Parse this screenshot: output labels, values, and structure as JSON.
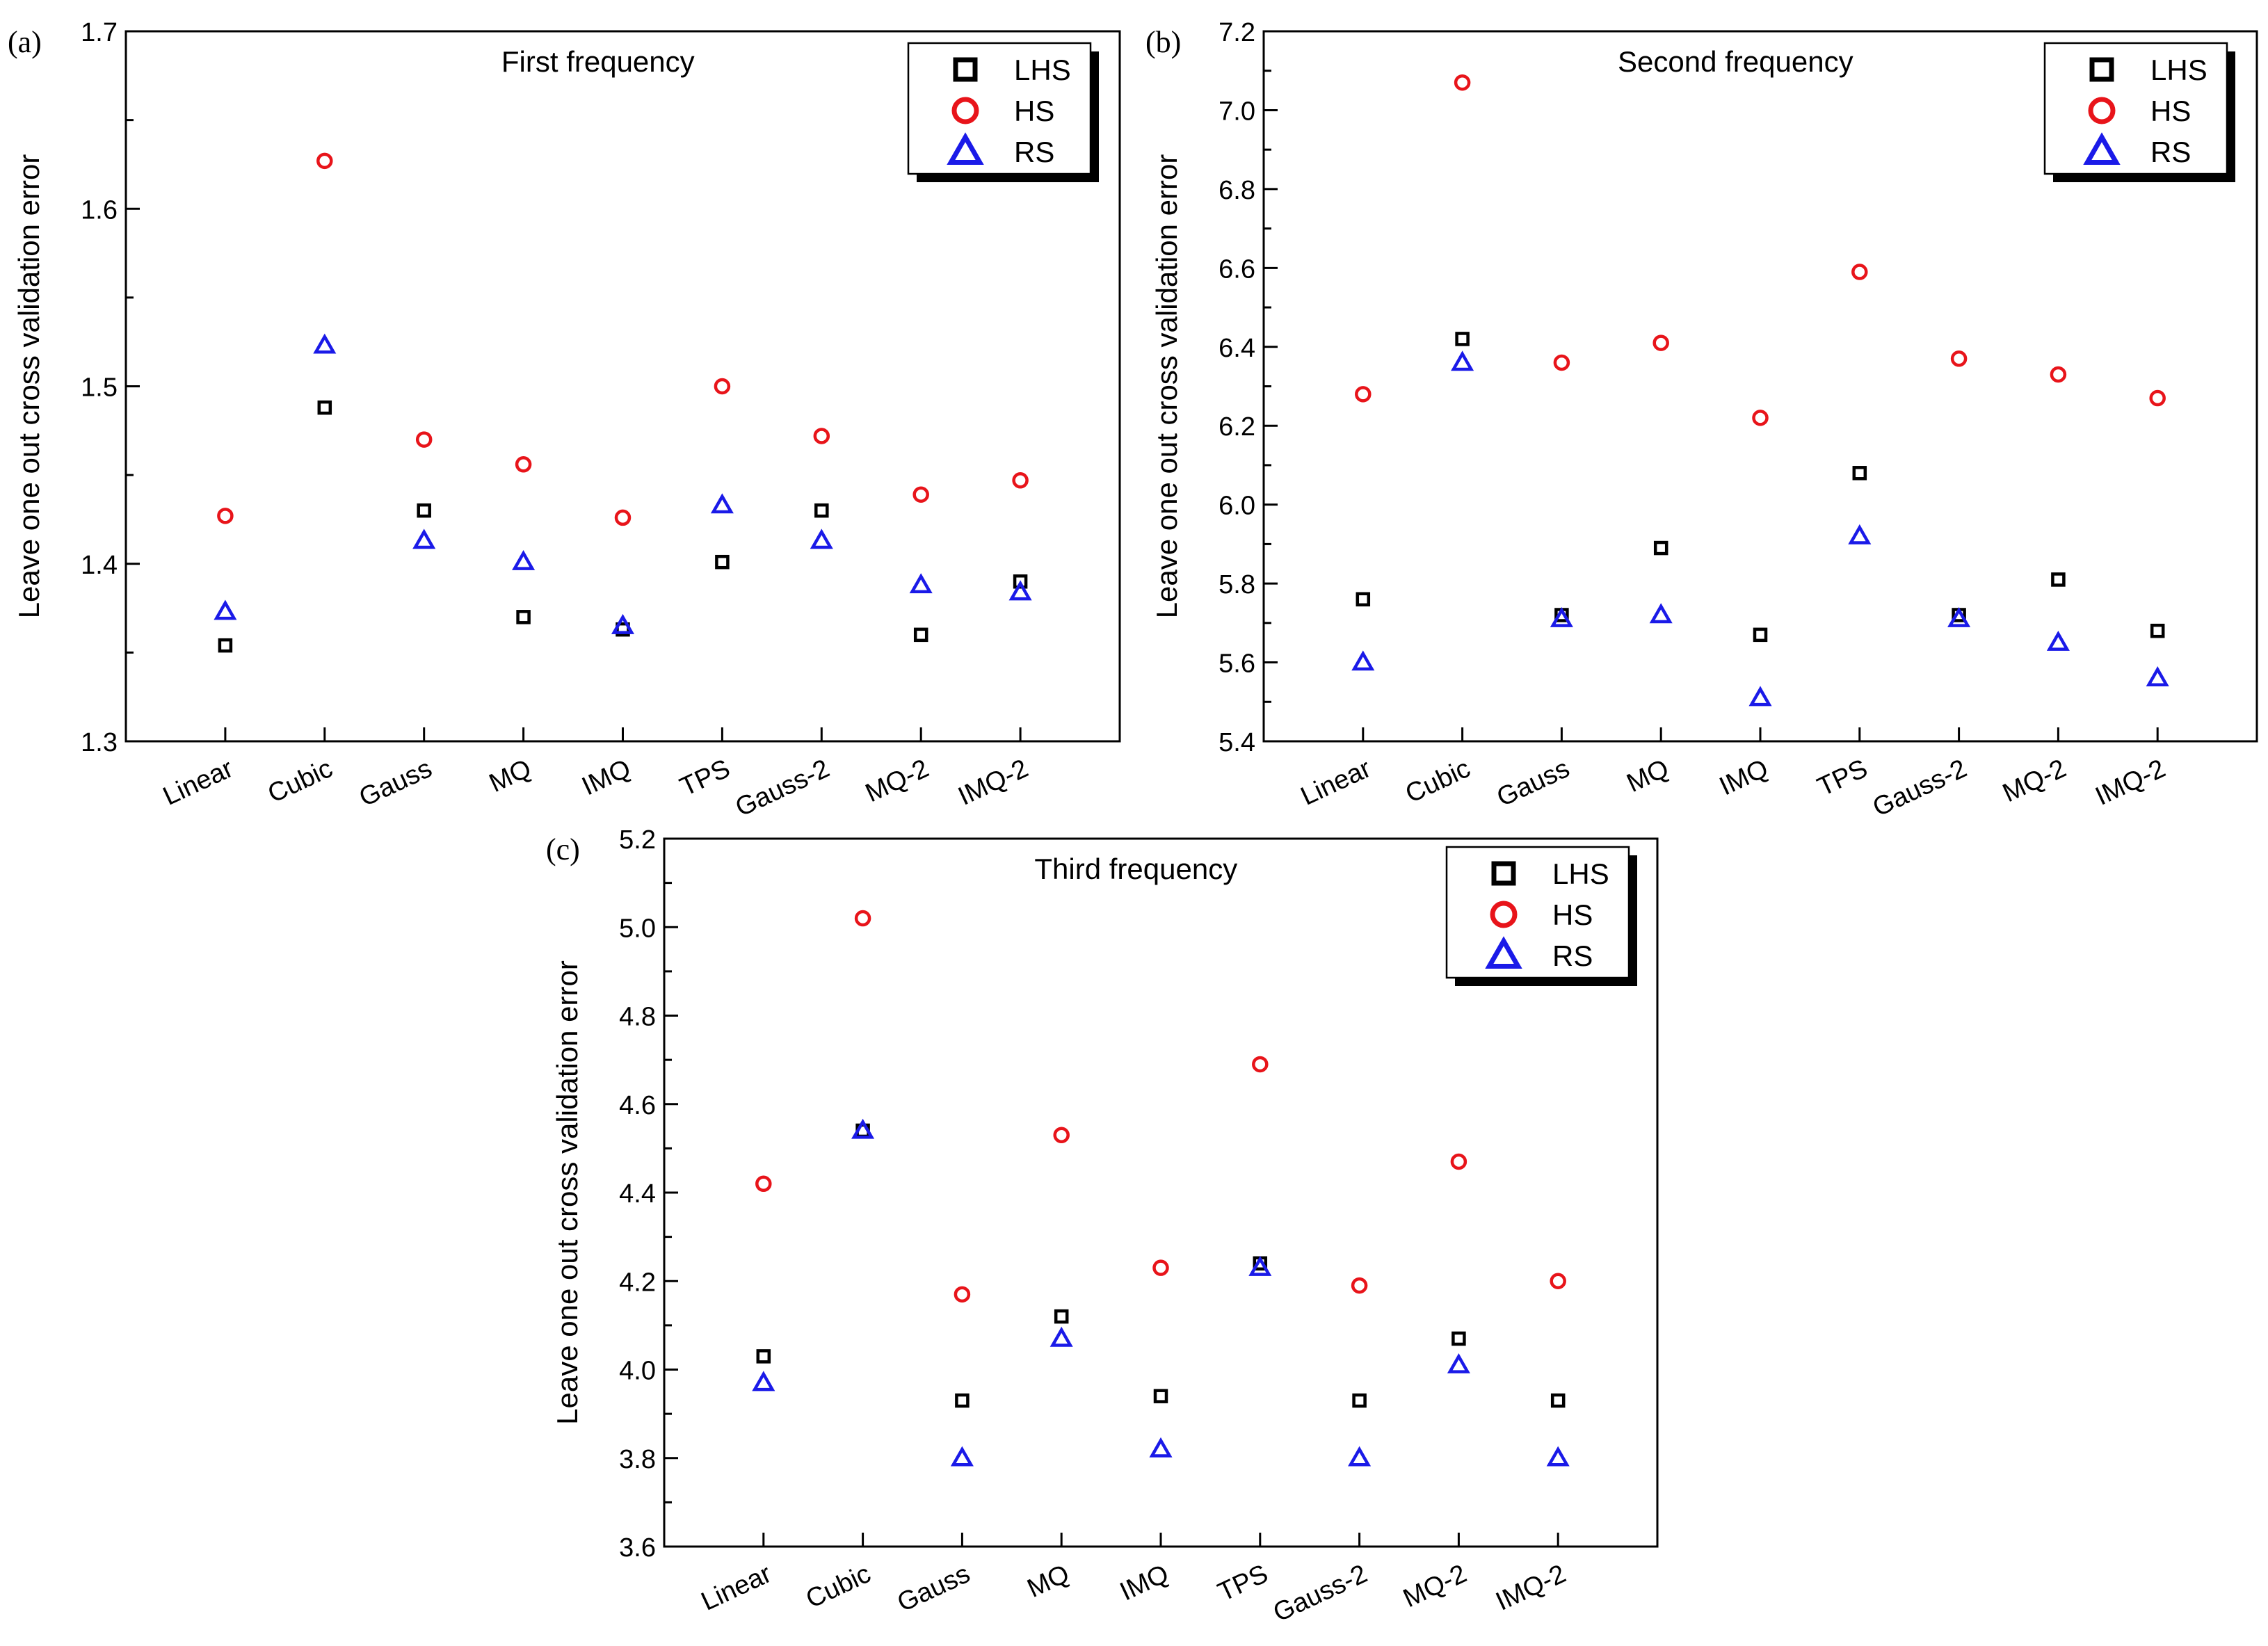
{
  "figure": {
    "series_styles": [
      {
        "name": "LHS",
        "marker": "square",
        "color": "#000000"
      },
      {
        "name": "HS",
        "marker": "circle",
        "color": "#e8141a"
      },
      {
        "name": "RS",
        "marker": "triangle",
        "color": "#1a1ae8"
      }
    ]
  },
  "chart_data": [
    {
      "panel_label": "(a)",
      "type": "scatter",
      "title": "First frequency",
      "xlabel": "",
      "ylabel": "Leave one out cross validation error",
      "categories": [
        "Linear",
        "Cubic",
        "Gauss",
        "MQ",
        "IMQ",
        "TPS",
        "Gauss-2",
        "MQ-2",
        "IMQ-2"
      ],
      "ylim": [
        1.3,
        1.7
      ],
      "yticks": [
        1.3,
        1.4,
        1.5,
        1.6,
        1.7
      ],
      "ytick_labels": [
        "1.3",
        "1.4",
        "1.5",
        "1.6",
        "1.7"
      ],
      "legend": [
        "LHS",
        "HS",
        "RS"
      ],
      "legend_position": "top-right",
      "series": [
        {
          "name": "LHS",
          "values": [
            1.354,
            1.488,
            1.43,
            1.37,
            1.363,
            1.401,
            1.43,
            1.36,
            1.39
          ]
        },
        {
          "name": "HS",
          "values": [
            1.427,
            1.627,
            1.47,
            1.456,
            1.426,
            1.5,
            1.472,
            1.439,
            1.447
          ]
        },
        {
          "name": "RS",
          "values": [
            1.373,
            1.523,
            1.413,
            1.401,
            1.365,
            1.433,
            1.413,
            1.388,
            1.384
          ]
        }
      ]
    },
    {
      "panel_label": "(b)",
      "type": "scatter",
      "title": "Second frequency",
      "xlabel": "",
      "ylabel": "Leave one out cross validation error",
      "categories": [
        "Linear",
        "Cubic",
        "Gauss",
        "MQ",
        "IMQ",
        "TPS",
        "Gauss-2",
        "MQ-2",
        "IMQ-2"
      ],
      "ylim": [
        5.4,
        7.2
      ],
      "yticks": [
        5.4,
        5.6,
        5.8,
        6.0,
        6.2,
        6.4,
        6.6,
        6.8,
        7.0,
        7.2
      ],
      "ytick_labels": [
        "5.4",
        "5.6",
        "5.8",
        "6.0",
        "6.2",
        "6.4",
        "6.6",
        "6.8",
        "7.0",
        "7.2"
      ],
      "legend": [
        "LHS",
        "HS",
        "RS"
      ],
      "legend_position": "top-right",
      "series": [
        {
          "name": "LHS",
          "values": [
            5.76,
            6.42,
            5.72,
            5.89,
            5.67,
            6.08,
            5.72,
            5.81,
            5.68
          ]
        },
        {
          "name": "HS",
          "values": [
            6.28,
            7.07,
            6.36,
            6.41,
            6.22,
            6.59,
            6.37,
            6.33,
            6.27
          ]
        },
        {
          "name": "RS",
          "values": [
            5.6,
            6.36,
            5.71,
            5.72,
            5.51,
            5.92,
            5.71,
            5.65,
            5.56
          ]
        }
      ]
    },
    {
      "panel_label": "(c)",
      "type": "scatter",
      "title": "Third frequency",
      "xlabel": "",
      "ylabel": "Leave one out cross validation error",
      "categories": [
        "Linear",
        "Cubic",
        "Gauss",
        "MQ",
        "IMQ",
        "TPS",
        "Gauss-2",
        "MQ-2",
        "IMQ-2"
      ],
      "ylim": [
        3.6,
        5.2
      ],
      "yticks": [
        3.6,
        3.8,
        4.0,
        4.2,
        4.4,
        4.6,
        4.8,
        5.0,
        5.2
      ],
      "ytick_labels": [
        "3.6",
        "3.8",
        "4.0",
        "4.2",
        "4.4",
        "4.6",
        "4.8",
        "5.0",
        "5.2"
      ],
      "legend": [
        "LHS",
        "HS",
        "RS"
      ],
      "legend_position": "top-right",
      "series": [
        {
          "name": "LHS",
          "values": [
            4.03,
            4.54,
            3.93,
            4.12,
            3.94,
            4.24,
            3.93,
            4.07,
            3.93
          ]
        },
        {
          "name": "HS",
          "values": [
            4.42,
            5.02,
            4.17,
            4.53,
            4.23,
            4.69,
            4.19,
            4.47,
            4.2
          ]
        },
        {
          "name": "RS",
          "values": [
            3.97,
            4.54,
            3.8,
            4.07,
            3.82,
            4.23,
            3.8,
            4.01,
            3.8
          ]
        }
      ]
    }
  ]
}
